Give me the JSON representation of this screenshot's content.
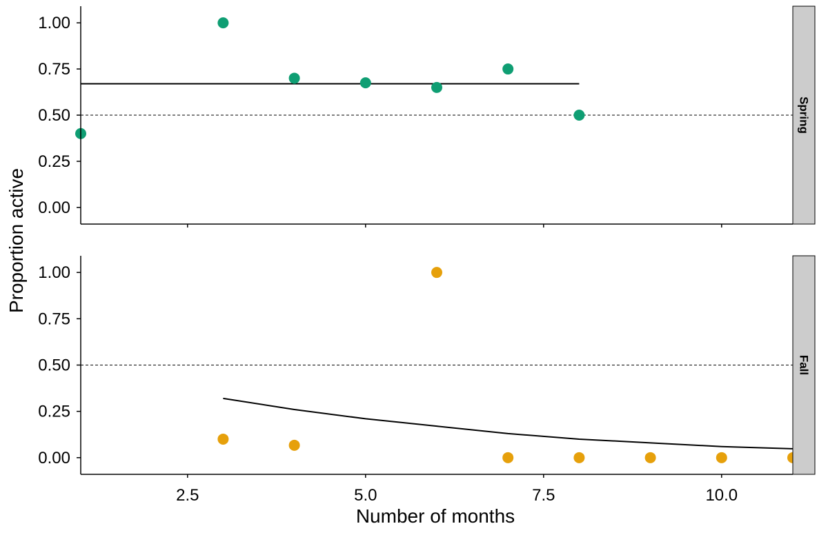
{
  "chart_data": {
    "type": "scatter",
    "xlabel": "Number of months",
    "ylabel": "Proportion active",
    "xlim": [
      1.0,
      11.0
    ],
    "ylim": [
      -0.09,
      1.09
    ],
    "x_ticks": [
      2.5,
      5.0,
      7.5,
      10.0
    ],
    "x_tick_labels": [
      "2.5",
      "5.0",
      "7.5",
      "10.0"
    ],
    "y_ticks": [
      0,
      0.25,
      0.5,
      0.75,
      1.0
    ],
    "y_tick_labels": [
      "0.00",
      "0.25",
      "0.50",
      "0.75",
      "1.00"
    ],
    "reference_line": 0.5,
    "grid": false,
    "panels": [
      {
        "label": "Spring",
        "color": "#0f9e73",
        "points": [
          {
            "x": 1,
            "y": 0.4
          },
          {
            "x": 3,
            "y": 1.0
          },
          {
            "x": 4,
            "y": 0.7
          },
          {
            "x": 5,
            "y": 0.675
          },
          {
            "x": 6,
            "y": 0.65
          },
          {
            "x": 7,
            "y": 0.75
          },
          {
            "x": 8,
            "y": 0.5
          }
        ],
        "fit": [
          {
            "x": 1,
            "y": 0.67
          },
          {
            "x": 8,
            "y": 0.67
          }
        ]
      },
      {
        "label": "Fall",
        "color": "#e6a00b",
        "points": [
          {
            "x": 3,
            "y": 0.1
          },
          {
            "x": 4,
            "y": 0.067
          },
          {
            "x": 6,
            "y": 1.0
          },
          {
            "x": 7,
            "y": 0.0
          },
          {
            "x": 8,
            "y": 0.0
          },
          {
            "x": 9,
            "y": 0.0
          },
          {
            "x": 10,
            "y": 0.0
          },
          {
            "x": 11,
            "y": 0.0
          }
        ],
        "fit": [
          {
            "x": 3,
            "y": 0.32
          },
          {
            "x": 4,
            "y": 0.26
          },
          {
            "x": 5,
            "y": 0.21
          },
          {
            "x": 6,
            "y": 0.17
          },
          {
            "x": 7,
            "y": 0.13
          },
          {
            "x": 8,
            "y": 0.1
          },
          {
            "x": 9,
            "y": 0.08
          },
          {
            "x": 10,
            "y": 0.06
          },
          {
            "x": 11,
            "y": 0.048
          }
        ]
      }
    ]
  }
}
